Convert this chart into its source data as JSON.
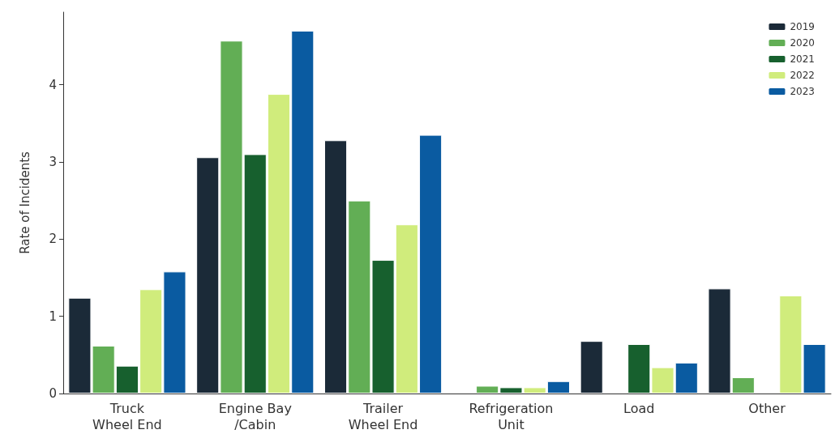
{
  "chart_data": {
    "type": "bar",
    "ylabel": "Rate of Incidents",
    "categories": [
      "Truck\nWheel End",
      "Engine Bay\n/Cabin",
      "Trailer\nWheel End",
      "Refrigeration\nUnit",
      "Load",
      "Other"
    ],
    "series": [
      {
        "name": "2019",
        "color": "#1b2a38",
        "values": [
          1.24,
          3.06,
          3.28,
          null,
          0.68,
          1.36
        ]
      },
      {
        "name": "2020",
        "color": "#62ae55",
        "values": [
          0.62,
          4.57,
          2.5,
          0.1,
          null,
          0.21
        ]
      },
      {
        "name": "2021",
        "color": "#17602e",
        "values": [
          0.36,
          3.1,
          1.73,
          0.08,
          0.64,
          null
        ]
      },
      {
        "name": "2022",
        "color": "#d0ec7c",
        "values": [
          1.35,
          3.88,
          2.19,
          0.08,
          0.34,
          1.27
        ]
      },
      {
        "name": "2023",
        "color": "#0a5ba1",
        "values": [
          1.58,
          4.7,
          3.35,
          0.16,
          0.4,
          0.64
        ]
      }
    ],
    "ylim": [
      0,
      4.94
    ],
    "yticks": [
      0,
      1,
      2,
      3,
      4
    ],
    "grid": false,
    "legend": "top right"
  }
}
